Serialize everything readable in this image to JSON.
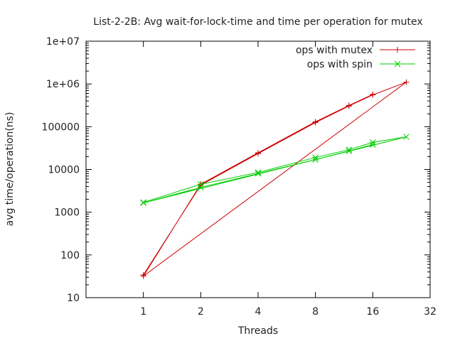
{
  "chart_data": {
    "type": "line",
    "title": "List-2-2B: Avg wait-for-lock-time and time per operation for mutex",
    "xlabel": "Threads",
    "ylabel": "avg time/operation(ns)",
    "x_scale": "log2",
    "y_scale": "log10",
    "xlim": [
      0.5,
      32
    ],
    "ylim": [
      10,
      10000000
    ],
    "x_ticks": [
      1,
      2,
      4,
      8,
      16,
      32
    ],
    "x_tick_labels": [
      "1",
      "2",
      "4",
      "8",
      "16",
      "32"
    ],
    "y_ticks": [
      10,
      100,
      1000,
      10000,
      100000,
      1000000,
      10000000
    ],
    "y_tick_labels": [
      "10",
      "100",
      "1000",
      "10000",
      "100000",
      "1e+06",
      "1e+07"
    ],
    "legend_position": "top-right",
    "grid": false,
    "series": [
      {
        "name": "ops with mutex",
        "color": "#cc0000",
        "marker": "plus",
        "points": [
          [
            1,
            34
          ],
          [
            2,
            4300
          ],
          [
            4,
            23500
          ],
          [
            8,
            125000
          ],
          [
            12,
            305000
          ],
          [
            16,
            555000
          ],
          [
            24,
            1100000
          ],
          [
            1,
            32
          ],
          [
            2,
            4500
          ],
          [
            4,
            24500
          ],
          [
            8,
            130000
          ],
          [
            12,
            315000
          ],
          [
            16,
            570000
          ]
        ]
      },
      {
        "name": "ops with spin",
        "color": "#00cc00",
        "marker": "cross",
        "points": [
          [
            1,
            1700
          ],
          [
            2,
            4500
          ],
          [
            4,
            8500
          ],
          [
            8,
            19000
          ],
          [
            12,
            29000
          ],
          [
            16,
            43000
          ],
          [
            24,
            58000
          ],
          [
            1,
            1650
          ],
          [
            2,
            3800
          ],
          [
            4,
            8000
          ],
          [
            8,
            17000
          ],
          [
            12,
            27000
          ],
          [
            16,
            38000
          ]
        ]
      }
    ]
  }
}
